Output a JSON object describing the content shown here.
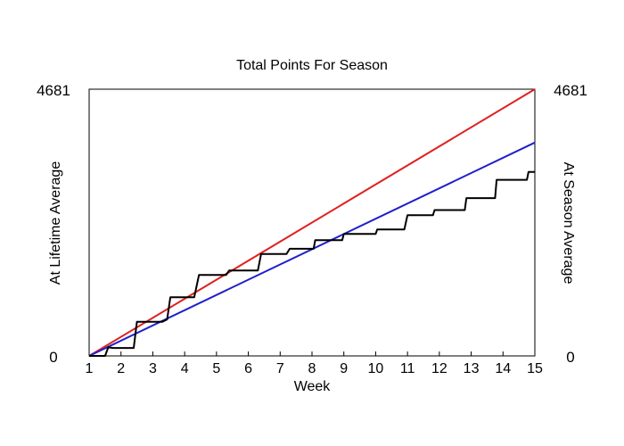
{
  "chart_data": {
    "type": "line",
    "title": "Total Points For Season",
    "xlabel": "Week",
    "ylabel_left": "At Lifetime Average",
    "ylabel_right": "At Season Average",
    "xlim": [
      1,
      15
    ],
    "ylim": [
      0,
      4681
    ],
    "ylim_label_min": "0",
    "ylim_label_max": "4681",
    "x_ticks": [
      1,
      2,
      3,
      4,
      5,
      6,
      7,
      8,
      9,
      10,
      11,
      12,
      13,
      14,
      15
    ],
    "grid": false,
    "colors": {
      "lifetime": "#1f1fcc",
      "season": "#e02020",
      "actual": "#000000",
      "left_label": "#1010cc",
      "right_label": "#dd1111"
    },
    "series": [
      {
        "key": "season",
        "x": [
          1,
          15
        ],
        "y": [
          0,
          4681
        ]
      },
      {
        "key": "lifetime",
        "x": [
          1,
          15
        ],
        "y": [
          0,
          3745
        ]
      },
      {
        "key": "actual",
        "x": [
          1,
          1.5,
          1.6,
          1.75,
          2.4,
          2.5,
          2.6,
          3.3,
          3.45,
          3.55,
          4.3,
          4.45,
          4.55,
          5.3,
          5.4,
          5.5,
          6.3,
          6.4,
          6.5,
          7.2,
          7.3,
          7.4,
          8.05,
          8.1,
          8.2,
          8.95,
          9.0,
          9.1,
          10.0,
          10.05,
          10.15,
          10.9,
          11.0,
          11.1,
          11.8,
          11.85,
          11.95,
          12.8,
          12.85,
          12.95,
          13.75,
          13.8,
          13.9,
          14.75,
          14.8,
          14.9,
          15.0
        ],
        "y": [
          0,
          0,
          150,
          140,
          140,
          600,
          600,
          600,
          640,
          1030,
          1030,
          1420,
          1420,
          1420,
          1500,
          1500,
          1500,
          1790,
          1790,
          1790,
          1880,
          1880,
          1880,
          2030,
          2030,
          2030,
          2140,
          2140,
          2140,
          2220,
          2220,
          2220,
          2470,
          2470,
          2470,
          2560,
          2560,
          2560,
          2770,
          2770,
          2770,
          3090,
          3090,
          3090,
          3230,
          3230,
          3230
        ]
      }
    ]
  }
}
